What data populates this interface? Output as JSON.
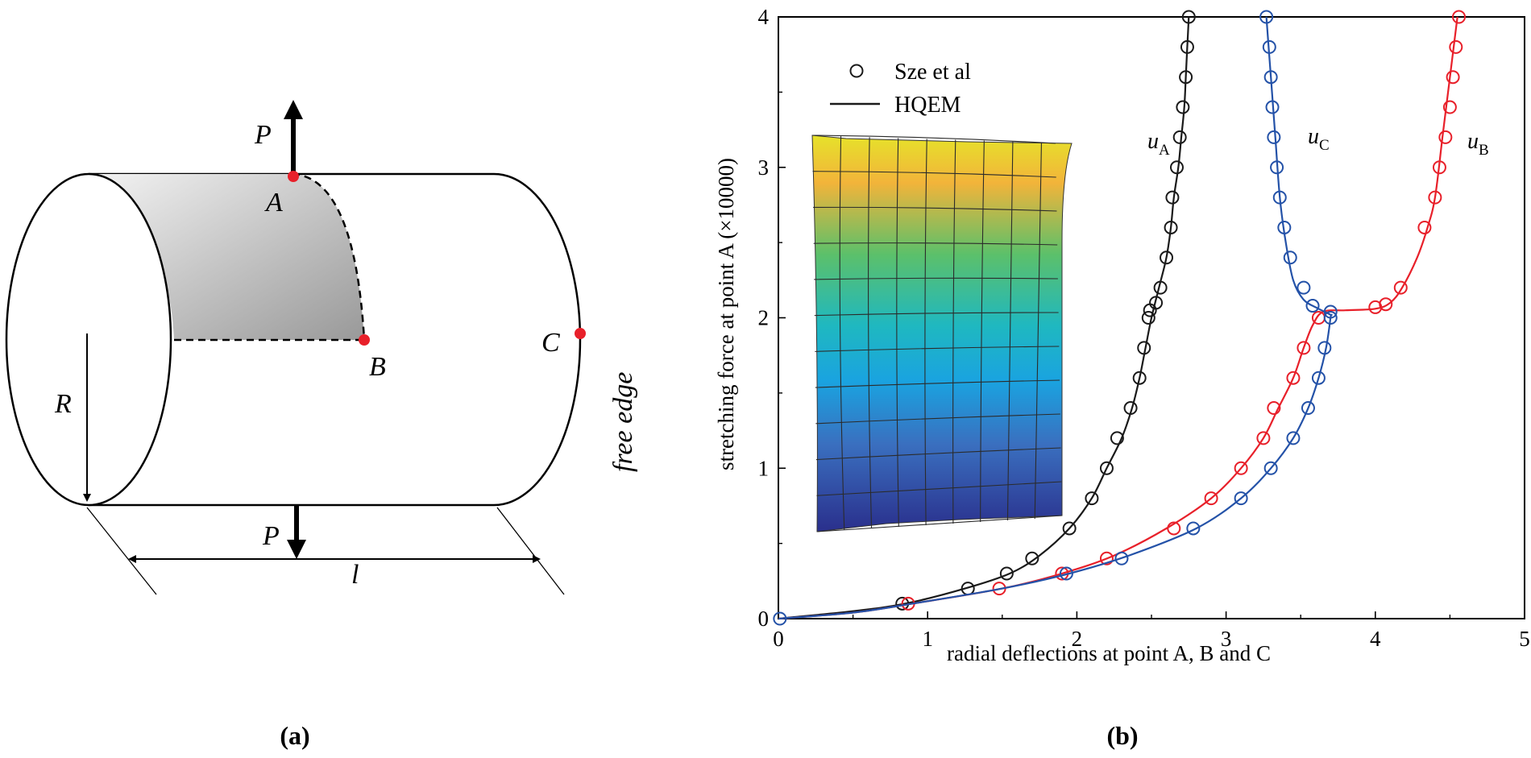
{
  "panel_a": {
    "caption": "(a)",
    "labels": {
      "P_top": "P",
      "P_bottom": "P",
      "A": "A",
      "B": "B",
      "C": "C",
      "R": "R",
      "l": "l",
      "free_edge": "free edge"
    },
    "colors": {
      "point": "#e8202a",
      "shade_light": "#f2f2f2",
      "shade_dark": "#9a9a9a",
      "line": "#000000"
    }
  },
  "panel_b": {
    "caption": "(b)",
    "legend": {
      "marker_label": "Sze et al",
      "line_label": "HQEM"
    },
    "curve_labels": {
      "uA": "u",
      "uA_sub": "A",
      "uB": "u",
      "uB_sub": "B",
      "uC": "u",
      "uC_sub": "C"
    }
  },
  "chart_data": {
    "type": "line",
    "xlabel": "radial deflections at point A, B and C",
    "ylabel": "stretching force at point A (×10000)",
    "xlim": [
      0,
      5
    ],
    "ylim": [
      0,
      4
    ],
    "xticks": [
      "0",
      "1",
      "2",
      "3",
      "4",
      "5"
    ],
    "yticks": [
      "0",
      "1",
      "2",
      "3",
      "4"
    ],
    "grid": false,
    "legend_position": "top-left",
    "series": [
      {
        "name": "u_A",
        "color": "#1a1a1a",
        "line": [
          [
            0,
            0
          ],
          [
            0.5,
            0.05
          ],
          [
            0.85,
            0.1
          ],
          [
            1.25,
            0.2
          ],
          [
            1.55,
            0.3
          ],
          [
            1.75,
            0.42
          ],
          [
            1.95,
            0.6
          ],
          [
            2.1,
            0.8
          ],
          [
            2.2,
            1.0
          ],
          [
            2.3,
            1.2
          ],
          [
            2.37,
            1.4
          ],
          [
            2.42,
            1.6
          ],
          [
            2.46,
            1.8
          ],
          [
            2.5,
            2.0
          ],
          [
            2.55,
            2.2
          ],
          [
            2.6,
            2.4
          ],
          [
            2.63,
            2.6
          ],
          [
            2.65,
            2.8
          ],
          [
            2.68,
            3.0
          ],
          [
            2.7,
            3.2
          ],
          [
            2.72,
            3.4
          ],
          [
            2.73,
            3.6
          ],
          [
            2.74,
            3.8
          ],
          [
            2.75,
            4.0
          ]
        ],
        "markers": [
          [
            0.83,
            0.1
          ],
          [
            1.27,
            0.2
          ],
          [
            1.53,
            0.3
          ],
          [
            1.7,
            0.4
          ],
          [
            1.95,
            0.6
          ],
          [
            2.1,
            0.8
          ],
          [
            2.2,
            1.0
          ],
          [
            2.27,
            1.2
          ],
          [
            2.36,
            1.4
          ],
          [
            2.42,
            1.6
          ],
          [
            2.45,
            1.8
          ],
          [
            2.48,
            2.0
          ],
          [
            2.49,
            2.05
          ],
          [
            2.53,
            2.1
          ],
          [
            2.56,
            2.2
          ],
          [
            2.6,
            2.4
          ],
          [
            2.63,
            2.6
          ],
          [
            2.64,
            2.8
          ],
          [
            2.67,
            3.0
          ],
          [
            2.69,
            3.2
          ],
          [
            2.71,
            3.4
          ],
          [
            2.73,
            3.6
          ],
          [
            2.74,
            3.8
          ],
          [
            2.75,
            4.0
          ]
        ]
      },
      {
        "name": "u_B",
        "color": "#e8202a",
        "line": [
          [
            0,
            0
          ],
          [
            0.5,
            0.04
          ],
          [
            0.9,
            0.1
          ],
          [
            1.5,
            0.2
          ],
          [
            1.9,
            0.3
          ],
          [
            2.25,
            0.42
          ],
          [
            2.6,
            0.6
          ],
          [
            2.9,
            0.8
          ],
          [
            3.1,
            1.0
          ],
          [
            3.25,
            1.2
          ],
          [
            3.35,
            1.4
          ],
          [
            3.45,
            1.6
          ],
          [
            3.52,
            1.8
          ],
          [
            3.58,
            1.95
          ],
          [
            3.65,
            2.04
          ],
          [
            3.8,
            2.05
          ],
          [
            4.0,
            2.06
          ],
          [
            4.1,
            2.1
          ],
          [
            4.18,
            2.2
          ],
          [
            4.28,
            2.4
          ],
          [
            4.35,
            2.6
          ],
          [
            4.4,
            2.8
          ],
          [
            4.45,
            3.2
          ],
          [
            4.5,
            3.6
          ],
          [
            4.55,
            4.0
          ]
        ],
        "markers": [
          [
            0.87,
            0.1
          ],
          [
            1.48,
            0.2
          ],
          [
            1.9,
            0.3
          ],
          [
            2.2,
            0.4
          ],
          [
            2.65,
            0.6
          ],
          [
            2.9,
            0.8
          ],
          [
            3.1,
            1.0
          ],
          [
            3.25,
            1.2
          ],
          [
            3.32,
            1.4
          ],
          [
            3.45,
            1.6
          ],
          [
            3.52,
            1.8
          ],
          [
            3.62,
            2.0
          ],
          [
            4.0,
            2.07
          ],
          [
            4.07,
            2.09
          ],
          [
            4.17,
            2.2
          ],
          [
            4.33,
            2.6
          ],
          [
            4.4,
            2.8
          ],
          [
            4.43,
            3.0
          ],
          [
            4.47,
            3.2
          ],
          [
            4.5,
            3.4
          ],
          [
            4.52,
            3.6
          ],
          [
            4.54,
            3.8
          ],
          [
            4.56,
            4.0
          ]
        ]
      },
      {
        "name": "u_C",
        "color": "#2452a8",
        "line": [
          [
            0,
            0
          ],
          [
            0.5,
            0.04
          ],
          [
            0.9,
            0.1
          ],
          [
            1.5,
            0.2
          ],
          [
            1.95,
            0.3
          ],
          [
            2.35,
            0.42
          ],
          [
            2.8,
            0.6
          ],
          [
            3.1,
            0.8
          ],
          [
            3.3,
            1.0
          ],
          [
            3.45,
            1.2
          ],
          [
            3.55,
            1.4
          ],
          [
            3.62,
            1.6
          ],
          [
            3.67,
            1.8
          ],
          [
            3.7,
            2.0
          ],
          [
            3.7,
            2.02
          ],
          [
            3.62,
            2.06
          ],
          [
            3.52,
            2.12
          ],
          [
            3.45,
            2.25
          ],
          [
            3.4,
            2.5
          ],
          [
            3.36,
            2.8
          ],
          [
            3.33,
            3.2
          ],
          [
            3.3,
            3.6
          ],
          [
            3.27,
            4.0
          ]
        ],
        "markers": [
          [
            0.01,
            0.0
          ],
          [
            1.93,
            0.3
          ],
          [
            2.3,
            0.4
          ],
          [
            2.78,
            0.6
          ],
          [
            3.1,
            0.8
          ],
          [
            3.3,
            1.0
          ],
          [
            3.45,
            1.2
          ],
          [
            3.55,
            1.4
          ],
          [
            3.62,
            1.6
          ],
          [
            3.66,
            1.8
          ],
          [
            3.7,
            2.0
          ],
          [
            3.7,
            2.04
          ],
          [
            3.58,
            2.08
          ],
          [
            3.52,
            2.2
          ],
          [
            3.43,
            2.4
          ],
          [
            3.39,
            2.6
          ],
          [
            3.36,
            2.8
          ],
          [
            3.34,
            3.0
          ],
          [
            3.32,
            3.2
          ],
          [
            3.31,
            3.4
          ],
          [
            3.3,
            3.6
          ],
          [
            3.29,
            3.8
          ],
          [
            3.27,
            4.0
          ]
        ]
      }
    ]
  }
}
